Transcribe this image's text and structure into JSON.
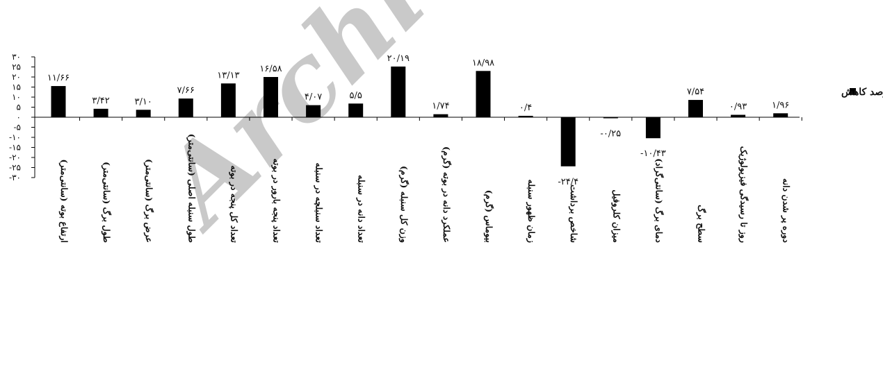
{
  "chart_data": {
    "type": "bar",
    "categories": [
      "ارتفاع بوته (سانتی‌متر)",
      "طول برگ (سانتی‌متر)",
      "عرض برگ (سانتی‌متر)",
      "طول سنبله اصلی (سانتی‌متر)",
      "تعداد کل پنجه در بوته",
      "تعداد پنجه بارور در بوته",
      "تعداد سنبلچه در سنبله",
      "تعداد دانه در سنبله",
      "وزن کل سنبله (گرم)",
      "عملکرد دانه در بوته (گرم)",
      "بیوماس (گرم)",
      "زمان ظهور سنبله",
      "شاخص برداشت",
      "میزان کلروفیل",
      "دمای برگ (سانتی‌گراد)",
      "سطح برگ",
      "روز تا رسیدگی فیزیولوژیک",
      "دوره پر شدن دانه"
    ],
    "series": [
      {
        "name": "درصد کاهش",
        "values": [
          11.66,
          3.42,
          3.1,
          7.66,
          13.13,
          16.58,
          4.07,
          5.5,
          20.19,
          1.74,
          18.98,
          0.4,
          -24.4,
          -0.25,
          -10.43,
          7.54,
          0.93,
          1.96
        ]
      }
    ],
    "display_values": [
      15.5,
      4.2,
      3.7,
      9.3,
      16.8,
      20.0,
      6.0,
      6.8,
      25.2,
      1.5,
      23.0,
      0.7,
      -24.4,
      -0.5,
      -10.43,
      8.6,
      1.2,
      1.96
    ],
    "data_labels": [
      "۱۱/۶۶",
      "۳/۴۲",
      "۳/۱۰",
      "۷/۶۶",
      "۱۳/۱۳",
      "۱۶/۵۸",
      "۴/۰۷",
      "۵/۵",
      "۲۰/۱۹",
      "۱/۷۴",
      "۱۸/۹۸",
      "۰/۴",
      "-۲۴/۴",
      "-۰/۲۵",
      "-۱۰/۴۳",
      "۷/۵۴",
      "۰/۹۳",
      "۱/۹۶"
    ],
    "y_ticks": [
      30,
      25,
      20,
      15,
      10,
      5,
      0,
      -5,
      -10,
      -15,
      -20,
      -25,
      -30
    ],
    "y_tick_labels": [
      "۳۰",
      "۲۵",
      "۲۰",
      "۱۵",
      "۱۰",
      "۵",
      "۰",
      "-۵",
      "-۱۰",
      "-۱۵",
      "-۲۰",
      "-۲۵",
      "-۳۰"
    ],
    "ylim": [
      -30,
      30
    ],
    "legend": {
      "label": "درصد کاهش",
      "placement": "right"
    },
    "colors": {
      "bar": "#000000",
      "axis": "#000000"
    },
    "watermark": "Archive"
  }
}
